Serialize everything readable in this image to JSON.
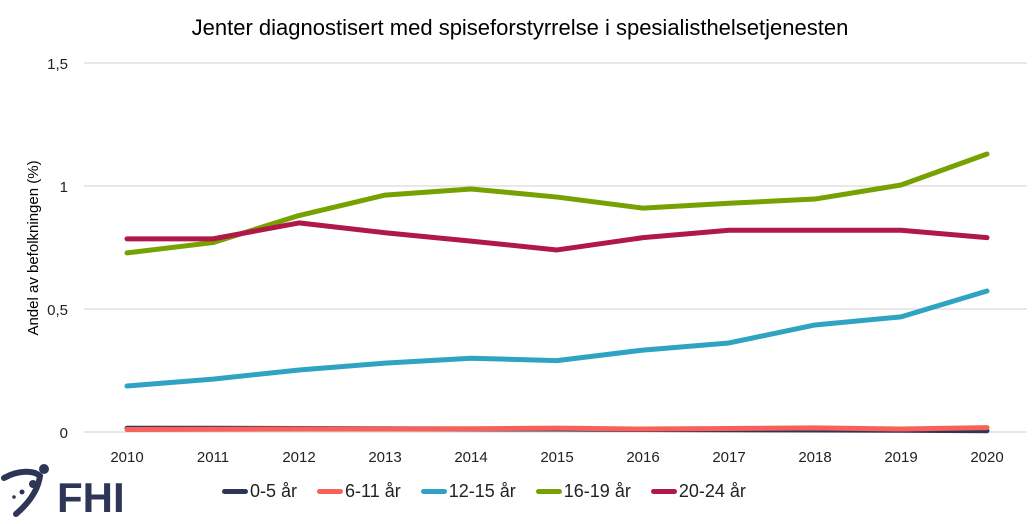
{
  "chart_data": {
    "type": "line",
    "title": "Jenter diagnostisert med spiseforstyrrelse i spesialisthelsetjenesten",
    "xlabel": "",
    "ylabel": "Andel av befolkningen (%)",
    "x": [
      "2010",
      "2011",
      "2012",
      "2013",
      "2014",
      "2015",
      "2016",
      "2017",
      "2018",
      "2019",
      "2020"
    ],
    "ylim": [
      0,
      1.5
    ],
    "yticks": [
      0,
      0.5,
      1,
      1.5
    ],
    "ytick_labels": [
      "0",
      "0,5",
      "1",
      "1,5"
    ],
    "grid": true,
    "legend_position": "bottom",
    "series": [
      {
        "name": "0-5 år",
        "color": "#2e3657",
        "values": [
          0.015,
          0.015,
          0.014,
          0.013,
          0.012,
          0.012,
          0.01,
          0.009,
          0.008,
          0.007,
          0.005
        ]
      },
      {
        "name": "6-11 år",
        "color": "#f8615a",
        "values": [
          0.01,
          0.011,
          0.012,
          0.012,
          0.013,
          0.016,
          0.012,
          0.014,
          0.017,
          0.012,
          0.018
        ]
      },
      {
        "name": "12-15 år",
        "color": "#2fa3c2",
        "values": [
          0.187,
          0.215,
          0.252,
          0.28,
          0.3,
          0.29,
          0.333,
          0.362,
          0.435,
          0.468,
          0.573
        ]
      },
      {
        "name": "16-19 år",
        "color": "#77a100",
        "values": [
          0.728,
          0.77,
          0.88,
          0.963,
          0.988,
          0.955,
          0.91,
          0.93,
          0.947,
          1.004,
          1.13
        ]
      },
      {
        "name": "20-24 år",
        "color": "#b01847",
        "values": [
          0.785,
          0.785,
          0.85,
          0.81,
          0.776,
          0.74,
          0.79,
          0.82,
          0.82,
          0.82,
          0.79
        ]
      }
    ]
  },
  "logo": {
    "text": "FHI"
  }
}
